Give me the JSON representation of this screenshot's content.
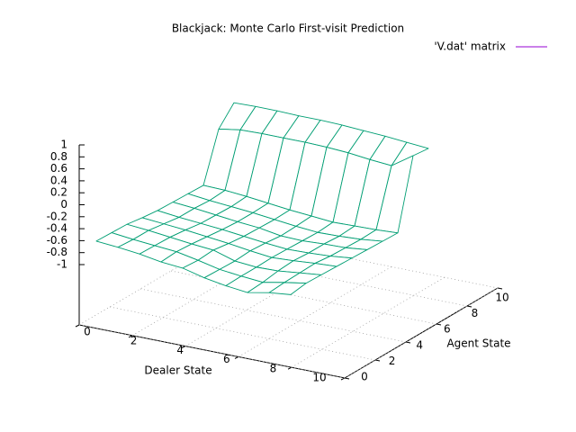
{
  "chart_data": {
    "type": "surface",
    "title": "Blackjack: Monte Carlo First-visit Prediction",
    "xlabel": "Dealer State",
    "ylabel": "Agent State",
    "series": [
      {
        "name": "'V.dat' matrix",
        "color": "#9400d3",
        "surface_color": "#009e73",
        "matrix": [
          [
            -0.6,
            -0.62,
            -0.65,
            -0.7,
            -0.72,
            -0.8,
            -0.85,
            -0.88,
            -0.8,
            -0.75
          ],
          [
            -0.55,
            -0.58,
            -0.6,
            -0.62,
            -0.68,
            -0.75,
            -0.78,
            -0.8,
            -0.72,
            -0.65
          ],
          [
            -0.5,
            -0.52,
            -0.55,
            -0.58,
            -0.6,
            -0.7,
            -0.72,
            -0.7,
            -0.65,
            -0.6
          ],
          [
            -0.48,
            -0.5,
            -0.52,
            -0.55,
            -0.58,
            -0.62,
            -0.65,
            -0.62,
            -0.58,
            -0.55
          ],
          [
            -0.45,
            -0.48,
            -0.5,
            -0.52,
            -0.55,
            -0.58,
            -0.6,
            -0.58,
            -0.55,
            -0.5
          ],
          [
            -0.4,
            -0.42,
            -0.45,
            -0.48,
            -0.5,
            -0.55,
            -0.55,
            -0.52,
            -0.5,
            -0.45
          ],
          [
            -0.35,
            -0.38,
            -0.4,
            -0.42,
            -0.45,
            -0.48,
            -0.5,
            -0.48,
            -0.45,
            -0.4
          ],
          [
            -0.3,
            -0.3,
            -0.32,
            -0.35,
            -0.38,
            -0.4,
            -0.42,
            -0.4,
            -0.38,
            -0.35
          ],
          [
            0.55,
            0.62,
            0.64,
            0.65,
            0.66,
            0.66,
            0.65,
            0.62,
            0.6,
            0.85
          ],
          [
            0.9,
            0.92,
            0.93,
            0.93,
            0.94,
            0.94,
            0.93,
            0.92,
            0.9,
            0.88
          ]
        ]
      }
    ],
    "xlim": [
      0,
      10
    ],
    "xticks": [
      0,
      2,
      4,
      6,
      8,
      10
    ],
    "ylim": [
      0,
      10
    ],
    "yticks": [
      0,
      2,
      4,
      6,
      8,
      10
    ],
    "zlim": [
      -1,
      1
    ],
    "zticks": [
      -1,
      -0.8,
      -0.6,
      -0.4,
      -0.2,
      0,
      0.2,
      0.4,
      0.6,
      0.8,
      1
    ],
    "grid": true,
    "legend": "top-right"
  }
}
